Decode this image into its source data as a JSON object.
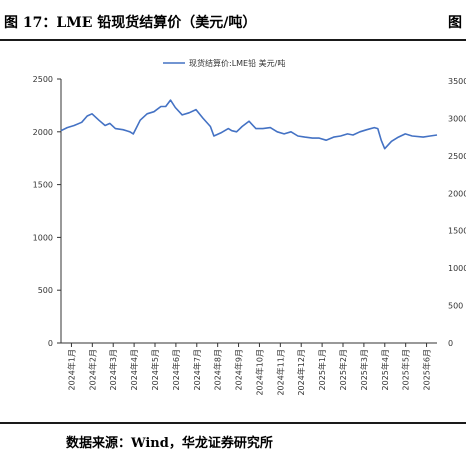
{
  "figure": {
    "title": "图 17：LME 铅现货结算价（美元/吨）",
    "title_right_fragment": "图",
    "source": "数据来源：Wind，华龙证券研究所"
  },
  "colors": {
    "series": "#4472C4",
    "axis": "#333333"
  },
  "chart_data": {
    "type": "line",
    "title": "",
    "xlabel": "",
    "ylabel": "",
    "ylim": [
      0,
      2500
    ],
    "yticks": [
      0,
      500,
      1000,
      1500,
      2000,
      2500
    ],
    "xlim": [
      "2024-01-01",
      "2025-06-30"
    ],
    "xticks": [
      "2024年1月",
      "2024年2月",
      "2024年3月",
      "2024年4月",
      "2024年5月",
      "2024年6月",
      "2024年7月",
      "2024年8月",
      "2024年9月",
      "2024年10月",
      "2024年11月",
      "2024年12月",
      "2025年1月",
      "2025年2月",
      "2025年3月",
      "2025年4月",
      "2025年5月",
      "2025年6月"
    ],
    "legend": {
      "position": "top-center",
      "entries": [
        "现货结算价:LME铅 美元/吨"
      ]
    },
    "grid": false,
    "series": [
      {
        "name": "现货结算价:LME铅 美元/吨",
        "points": [
          [
            "2024-01-01",
            2010
          ],
          [
            "2024-01-10",
            2040
          ],
          [
            "2024-01-20",
            2060
          ],
          [
            "2024-01-31",
            2090
          ],
          [
            "2024-02-08",
            2150
          ],
          [
            "2024-02-15",
            2170
          ],
          [
            "2024-02-25",
            2110
          ],
          [
            "2024-03-05",
            2060
          ],
          [
            "2024-03-12",
            2080
          ],
          [
            "2024-03-20",
            2030
          ],
          [
            "2024-03-31",
            2020
          ],
          [
            "2024-04-10",
            2000
          ],
          [
            "2024-04-15",
            1980
          ],
          [
            "2024-04-25",
            2110
          ],
          [
            "2024-05-05",
            2170
          ],
          [
            "2024-05-15",
            2190
          ],
          [
            "2024-05-25",
            2240
          ],
          [
            "2024-06-01",
            2240
          ],
          [
            "2024-06-08",
            2300
          ],
          [
            "2024-06-15",
            2230
          ],
          [
            "2024-06-25",
            2160
          ],
          [
            "2024-07-05",
            2180
          ],
          [
            "2024-07-15",
            2210
          ],
          [
            "2024-07-25",
            2130
          ],
          [
            "2024-08-05",
            2050
          ],
          [
            "2024-08-10",
            1960
          ],
          [
            "2024-08-20",
            1990
          ],
          [
            "2024-08-31",
            2030
          ],
          [
            "2024-09-05",
            2010
          ],
          [
            "2024-09-12",
            2000
          ],
          [
            "2024-09-20",
            2050
          ],
          [
            "2024-09-30",
            2100
          ],
          [
            "2024-10-10",
            2030
          ],
          [
            "2024-10-20",
            2030
          ],
          [
            "2024-10-31",
            2040
          ],
          [
            "2024-11-10",
            2000
          ],
          [
            "2024-11-20",
            1980
          ],
          [
            "2024-11-30",
            2000
          ],
          [
            "2024-12-10",
            1960
          ],
          [
            "2024-12-20",
            1950
          ],
          [
            "2024-12-31",
            1940
          ],
          [
            "2025-01-10",
            1940
          ],
          [
            "2025-01-20",
            1920
          ],
          [
            "2025-01-31",
            1950
          ],
          [
            "2025-02-10",
            1960
          ],
          [
            "2025-02-20",
            1980
          ],
          [
            "2025-02-28",
            1970
          ],
          [
            "2025-03-10",
            2000
          ],
          [
            "2025-03-20",
            2020
          ],
          [
            "2025-03-31",
            2040
          ],
          [
            "2025-04-05",
            2030
          ],
          [
            "2025-04-10",
            1920
          ],
          [
            "2025-04-15",
            1840
          ],
          [
            "2025-04-25",
            1910
          ],
          [
            "2025-05-05",
            1950
          ],
          [
            "2025-05-15",
            1980
          ],
          [
            "2025-05-25",
            1960
          ],
          [
            "2025-06-10",
            1950
          ],
          [
            "2025-06-20",
            1960
          ],
          [
            "2025-06-30",
            1970
          ]
        ]
      }
    ]
  },
  "right_chart_partial": {
    "yticks": [
      "3500",
      "3000",
      "2500",
      "2000",
      "1500",
      "1000",
      "500",
      "0"
    ]
  }
}
